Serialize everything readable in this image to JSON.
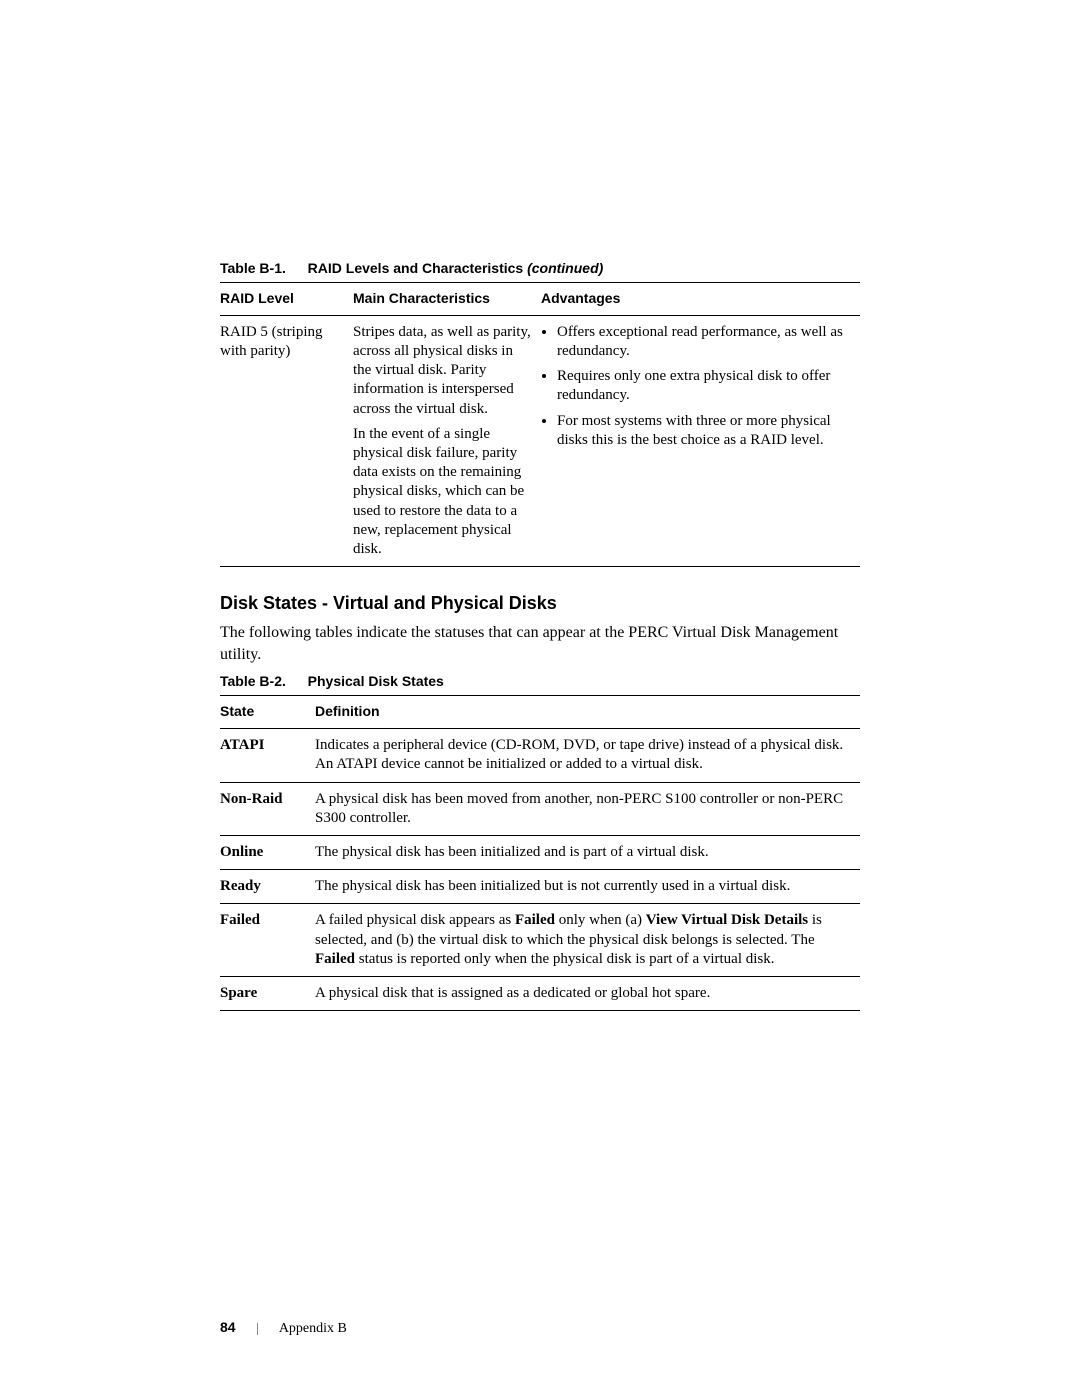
{
  "table1": {
    "caption_prefix": "Table B-1.",
    "caption_title": "RAID Levels and Characteristics",
    "caption_suffix": "(continued)",
    "headers": [
      "RAID Level",
      "Main Characteristics",
      "Advantages"
    ],
    "row": {
      "level": "RAID 5 (striping with parity)",
      "char_p1": "Stripes data, as well as parity, across all physical disks in the virtual disk. Parity information is interspersed across the virtual disk.",
      "char_p2": "In the event of a single physical disk failure, parity data exists on the remaining physical disks, which can be used to restore the data to a new, replacement physical disk.",
      "adv": [
        "Offers exceptional read performance, as well as redundancy.",
        "Requires only one extra physical disk to offer redundancy.",
        "For most systems with three or more physical disks this is the best choice as a RAID level."
      ]
    }
  },
  "section_heading": "Disk States - Virtual and Physical Disks",
  "section_lead": "The following tables indicate the statuses that can appear at the PERC Virtual Disk Management utility.",
  "table2": {
    "caption_prefix": "Table B-2.",
    "caption_title": "Physical Disk States",
    "headers": [
      "State",
      "Definition"
    ],
    "rows": [
      {
        "state": "ATAPI",
        "def_parts": [
          {
            "t": "Indicates a peripheral device (CD-ROM, DVD, or tape drive) instead of a physical disk. An ATAPI device cannot be initialized or added to a virtual disk."
          }
        ]
      },
      {
        "state": "Non-Raid",
        "def_parts": [
          {
            "t": "A physical disk has been moved from another, non-PERC S100 controller or non-PERC S300 controller."
          }
        ]
      },
      {
        "state": "Online",
        "def_parts": [
          {
            "t": "The physical disk has been initialized and is part of a virtual disk."
          }
        ]
      },
      {
        "state": "Ready",
        "def_parts": [
          {
            "t": "The physical disk has been initialized but is not currently used in a virtual disk."
          }
        ]
      },
      {
        "state": "Failed",
        "def_parts": [
          {
            "t": "A failed physical disk appears as "
          },
          {
            "t": "Failed",
            "b": true
          },
          {
            "t": " only when (a) "
          },
          {
            "t": "View Virtual Disk Details",
            "b": true
          },
          {
            "t": " is selected, and (b) the virtual disk to which the physical disk belongs is selected. The "
          },
          {
            "t": "Failed",
            "b": true
          },
          {
            "t": " status is reported only when the physical disk is part of a virtual disk."
          }
        ]
      },
      {
        "state": "Spare",
        "def_parts": [
          {
            "t": "A physical disk that is assigned as a dedicated or global hot spare."
          }
        ]
      }
    ]
  },
  "footer": {
    "page_number": "84",
    "appendix": "Appendix B"
  }
}
